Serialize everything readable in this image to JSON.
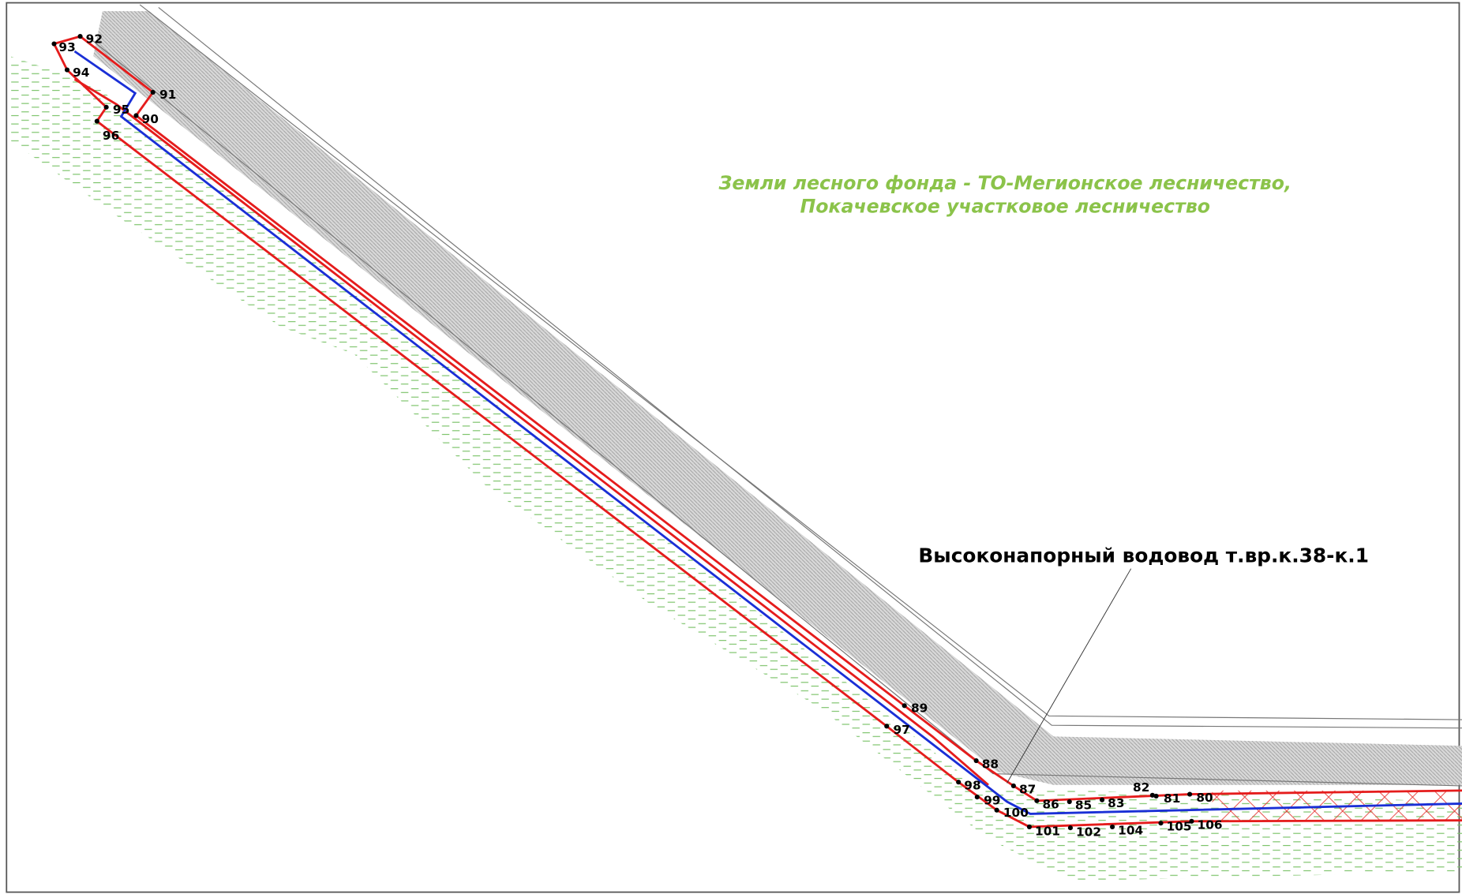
{
  "annotations": {
    "forest_land": [
      "Земли лесного фонда - ТО-Мегионское лесничество,",
      "Покачевское участковое лесничество"
    ],
    "pipeline": "Высоконапорный водовод т.вр.к.38-к.1"
  },
  "points": [
    "92",
    "93",
    "94",
    "91",
    "95",
    "90",
    "96",
    "89",
    "97",
    "88",
    "98",
    "87",
    "99",
    "100",
    "86",
    "85",
    "83",
    "82",
    "81",
    "80",
    "101",
    "102",
    "104",
    "105",
    "106"
  ]
}
